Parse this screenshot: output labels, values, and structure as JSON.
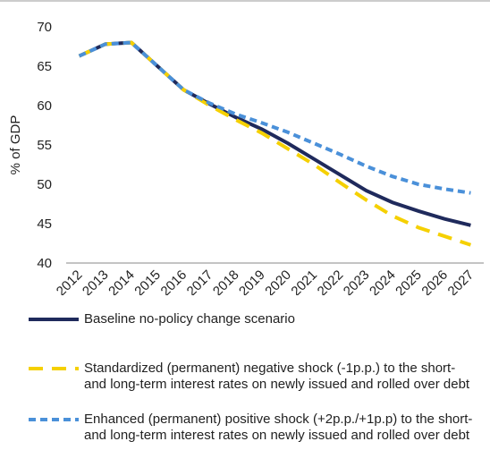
{
  "chart_data": {
    "type": "line",
    "ylabel": "% of GDP",
    "categories": [
      "2012",
      "2013",
      "2014",
      "2015",
      "2016",
      "2017",
      "2018",
      "2019",
      "2020",
      "2021",
      "2022",
      "2023",
      "2024",
      "2025",
      "2026",
      "2027"
    ],
    "ylim": [
      40,
      70
    ],
    "yticks": [
      40,
      45,
      50,
      55,
      60,
      65,
      70
    ],
    "series": [
      {
        "name": "Baseline no-policy change scenario",
        "color": "#1f2a5c",
        "dash": "solid",
        "values": [
          66.3,
          67.8,
          68.0,
          65.0,
          62.0,
          60.2,
          58.5,
          57.0,
          55.2,
          53.2,
          51.2,
          49.2,
          47.7,
          46.6,
          45.6,
          44.8
        ]
      },
      {
        "name": "Standardized (permanent) negative shock (-1p.p.) to the short- and long-term interest rates on newly issued and rolled over debt",
        "color": "#f5d000",
        "dash": "long",
        "values": [
          66.3,
          67.8,
          68.0,
          65.0,
          62.0,
          60.0,
          58.2,
          56.5,
          54.5,
          52.5,
          50.2,
          48.0,
          46.0,
          44.5,
          43.4,
          42.3
        ]
      },
      {
        "name": "Enhanced (permanent) positive shock (+2p.p./+1p.p) to the short- and long-term interest rates on newly issued and rolled over debt",
        "color": "#4a90d9",
        "dash": "short",
        "values": [
          66.3,
          67.8,
          68.0,
          65.0,
          62.0,
          60.3,
          58.9,
          57.8,
          56.6,
          55.2,
          53.8,
          52.3,
          51.0,
          50.0,
          49.4,
          48.9
        ]
      }
    ]
  }
}
